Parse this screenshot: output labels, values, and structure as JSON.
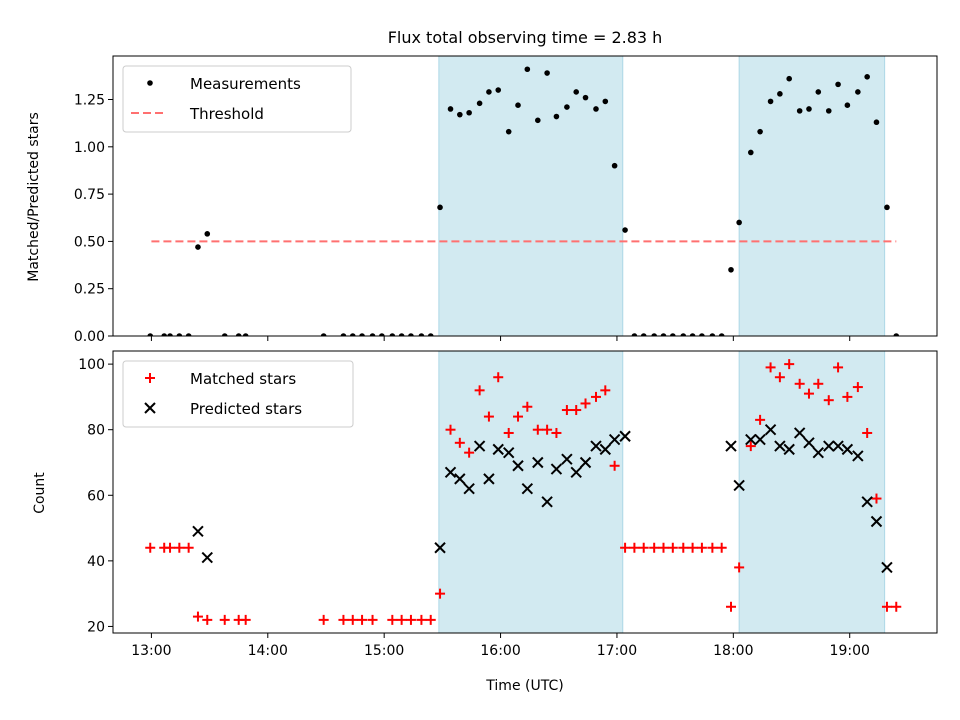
{
  "title": "Flux total observing time = 2.83 h",
  "colors": {
    "measurement": "#000000",
    "threshold": "#ff7070",
    "matched": "#ff0000",
    "predicted": "#000000",
    "shade_fill": "#add8e6"
  },
  "chart_data": [
    {
      "type": "scatter",
      "ylabel": "Matched/Predicted stars",
      "xlim": [
        12.67,
        19.75
      ],
      "ylim": [
        0,
        1.48
      ],
      "yticks": [
        0.0,
        0.25,
        0.5,
        0.75,
        1.0,
        1.25
      ],
      "ytick_labels": [
        "0.00",
        "0.25",
        "0.50",
        "0.75",
        "1.00",
        "1.25"
      ],
      "grid": false,
      "legend": {
        "position": "top-left",
        "entries": [
          "Measurements",
          "Threshold"
        ]
      },
      "shaded_intervals": [
        [
          15.47,
          17.05
        ],
        [
          18.05,
          19.3
        ]
      ],
      "threshold": {
        "name": "Threshold",
        "value": 0.5,
        "x_range": [
          13.0,
          19.4
        ],
        "style": "dashed"
      },
      "series": [
        {
          "name": "Measurements",
          "marker": "dot",
          "x": [
            12.99,
            13.11,
            13.16,
            13.24,
            13.32,
            13.4,
            13.48,
            13.63,
            13.75,
            13.81,
            14.48,
            14.65,
            14.73,
            14.81,
            14.9,
            14.98,
            15.07,
            15.15,
            15.23,
            15.32,
            15.4,
            15.48,
            15.57,
            15.65,
            15.73,
            15.82,
            15.9,
            15.98,
            16.07,
            16.15,
            16.23,
            16.32,
            16.4,
            16.48,
            16.57,
            16.65,
            16.73,
            16.82,
            16.9,
            16.98,
            17.07,
            17.15,
            17.23,
            17.32,
            17.4,
            17.48,
            17.57,
            17.65,
            17.73,
            17.82,
            17.9,
            17.98,
            18.05,
            18.15,
            18.23,
            18.32,
            18.4,
            18.48,
            18.57,
            18.65,
            18.73,
            18.82,
            18.9,
            18.98,
            19.07,
            19.15,
            19.23,
            19.32,
            19.4
          ],
          "y": [
            0.0,
            0.0,
            0.0,
            0.0,
            0.0,
            0.47,
            0.54,
            0.0,
            0.0,
            0.0,
            0.0,
            0.0,
            0.0,
            0.0,
            0.0,
            0.0,
            0.0,
            0.0,
            0.0,
            0.0,
            0.0,
            0.68,
            1.2,
            1.17,
            1.18,
            1.23,
            1.29,
            1.3,
            1.08,
            1.22,
            1.41,
            1.14,
            1.39,
            1.16,
            1.21,
            1.29,
            1.26,
            1.2,
            1.24,
            0.9,
            0.56,
            0.0,
            0.0,
            0.0,
            0.0,
            0.0,
            0.0,
            0.0,
            0.0,
            0.0,
            0.0,
            0.35,
            0.6,
            0.97,
            1.08,
            1.24,
            1.28,
            1.36,
            1.19,
            1.2,
            1.29,
            1.19,
            1.33,
            1.22,
            1.29,
            1.37,
            1.13,
            0.68,
            0.0
          ]
        }
      ]
    },
    {
      "type": "scatter",
      "xlabel": "Time (UTC)",
      "ylabel": "Count",
      "xlim": [
        12.67,
        19.75
      ],
      "ylim": [
        18,
        104
      ],
      "xticks": [
        13,
        14,
        15,
        16,
        17,
        18,
        19
      ],
      "xtick_labels": [
        "13:00",
        "14:00",
        "15:00",
        "16:00",
        "17:00",
        "18:00",
        "19:00"
      ],
      "yticks": [
        20,
        40,
        60,
        80,
        100
      ],
      "ytick_labels": [
        "20",
        "40",
        "60",
        "80",
        "100"
      ],
      "grid": false,
      "legend": {
        "position": "top-left",
        "entries": [
          "Matched stars",
          "Predicted stars"
        ]
      },
      "shaded_intervals": [
        [
          15.47,
          17.05
        ],
        [
          18.05,
          19.3
        ]
      ],
      "series": [
        {
          "name": "Matched stars",
          "marker": "plus",
          "points": [
            [
              12.99,
              44
            ],
            [
              13.11,
              44
            ],
            [
              13.16,
              44
            ],
            [
              13.24,
              44
            ],
            [
              13.32,
              44
            ],
            [
              13.4,
              23
            ],
            [
              13.48,
              22
            ],
            [
              13.63,
              22
            ],
            [
              13.75,
              22
            ],
            [
              13.81,
              22
            ],
            [
              14.48,
              22
            ],
            [
              14.65,
              22
            ],
            [
              14.73,
              22
            ],
            [
              14.81,
              22
            ],
            [
              14.9,
              22
            ],
            [
              15.07,
              22
            ],
            [
              15.15,
              22
            ],
            [
              15.23,
              22
            ],
            [
              15.32,
              22
            ],
            [
              15.4,
              22
            ],
            [
              15.48,
              30
            ],
            [
              15.57,
              80
            ],
            [
              15.65,
              76
            ],
            [
              15.73,
              73
            ],
            [
              15.82,
              92
            ],
            [
              15.9,
              84
            ],
            [
              15.98,
              96
            ],
            [
              16.07,
              79
            ],
            [
              16.15,
              84
            ],
            [
              16.23,
              87
            ],
            [
              16.32,
              80
            ],
            [
              16.4,
              80
            ],
            [
              16.48,
              79
            ],
            [
              16.57,
              86
            ],
            [
              16.65,
              86
            ],
            [
              16.73,
              88
            ],
            [
              16.82,
              90
            ],
            [
              16.9,
              92
            ],
            [
              16.98,
              69
            ],
            [
              17.07,
              44
            ],
            [
              17.15,
              44
            ],
            [
              17.23,
              44
            ],
            [
              17.32,
              44
            ],
            [
              17.4,
              44
            ],
            [
              17.48,
              44
            ],
            [
              17.57,
              44
            ],
            [
              17.65,
              44
            ],
            [
              17.73,
              44
            ],
            [
              17.82,
              44
            ],
            [
              17.9,
              44
            ],
            [
              17.98,
              26
            ],
            [
              18.05,
              38
            ],
            [
              18.15,
              75
            ],
            [
              18.23,
              83
            ],
            [
              18.32,
              99
            ],
            [
              18.4,
              96
            ],
            [
              18.48,
              100
            ],
            [
              18.57,
              94
            ],
            [
              18.65,
              91
            ],
            [
              18.73,
              94
            ],
            [
              18.82,
              89
            ],
            [
              18.9,
              99
            ],
            [
              18.98,
              90
            ],
            [
              19.07,
              93
            ],
            [
              19.15,
              79
            ],
            [
              19.23,
              59
            ],
            [
              19.32,
              26
            ],
            [
              19.4,
              26
            ]
          ]
        },
        {
          "name": "Predicted stars",
          "marker": "x",
          "points": [
            [
              13.4,
              49
            ],
            [
              13.48,
              41
            ],
            [
              15.48,
              44
            ],
            [
              15.57,
              67
            ],
            [
              15.65,
              65
            ],
            [
              15.73,
              62
            ],
            [
              15.82,
              75
            ],
            [
              15.9,
              65
            ],
            [
              15.98,
              74
            ],
            [
              16.07,
              73
            ],
            [
              16.15,
              69
            ],
            [
              16.23,
              62
            ],
            [
              16.32,
              70
            ],
            [
              16.4,
              58
            ],
            [
              16.48,
              68
            ],
            [
              16.57,
              71
            ],
            [
              16.65,
              67
            ],
            [
              16.73,
              70
            ],
            [
              16.82,
              75
            ],
            [
              16.9,
              74
            ],
            [
              16.98,
              77
            ],
            [
              17.07,
              78
            ],
            [
              17.98,
              75
            ],
            [
              18.05,
              63
            ],
            [
              18.15,
              77
            ],
            [
              18.23,
              77
            ],
            [
              18.32,
              80
            ],
            [
              18.4,
              75
            ],
            [
              18.48,
              74
            ],
            [
              18.57,
              79
            ],
            [
              18.65,
              76
            ],
            [
              18.73,
              73
            ],
            [
              18.82,
              75
            ],
            [
              18.9,
              75
            ],
            [
              18.98,
              74
            ],
            [
              19.07,
              72
            ],
            [
              19.15,
              58
            ],
            [
              19.23,
              52
            ],
            [
              19.32,
              38
            ]
          ]
        }
      ]
    }
  ]
}
